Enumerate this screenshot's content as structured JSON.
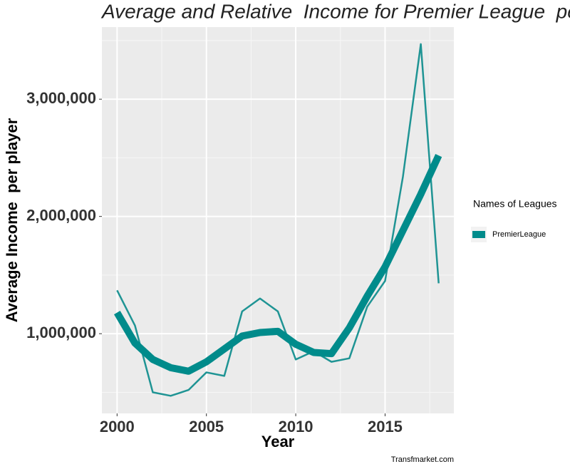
{
  "chart_data": {
    "type": "line",
    "title": "Average and Relative  Income for Premier League  per p",
    "x_label": "Year",
    "y_label": "Average Income  per player",
    "caption": "Transfmarket.com",
    "legend_title": "Names of Leagues",
    "x": [
      2000,
      2001,
      2002,
      2003,
      2004,
      2005,
      2006,
      2007,
      2008,
      2009,
      2010,
      2011,
      2012,
      2013,
      2014,
      2015,
      2016,
      2017,
      2018
    ],
    "series": [
      {
        "name": "PremierLeague",
        "color": "#1f9494",
        "line_width": 2.5,
        "values": [
          1370000,
          1070000,
          500000,
          470000,
          520000,
          670000,
          640000,
          1190000,
          1300000,
          1190000,
          780000,
          850000,
          760000,
          790000,
          1230000,
          1450000,
          2340000,
          3470000,
          1430000
        ]
      },
      {
        "color": "#008b8b",
        "line_width": 10,
        "values": [
          1180000,
          920000,
          780000,
          710000,
          680000,
          760000,
          870000,
          980000,
          1010000,
          1020000,
          910000,
          840000,
          830000,
          1050000,
          1320000,
          1570000,
          1880000,
          2190000,
          2520000
        ]
      }
    ],
    "xlim": [
      1999.15,
      2018.85
    ],
    "ylim": [
      320000,
      3615000
    ],
    "xticks": [
      2000,
      2005,
      2010,
      2015
    ],
    "x_minor_ticks": [
      2002.5,
      2007.5,
      2012.5,
      2017.5
    ],
    "yticks": [
      {
        "value": 1000000,
        "label": "1,000,000"
      },
      {
        "value": 2000000,
        "label": "2,000,000"
      },
      {
        "value": 3000000,
        "label": "3,000,000"
      }
    ],
    "y_minor_ticks": [
      500000,
      1500000,
      2500000,
      3500000
    ],
    "grid": true
  }
}
